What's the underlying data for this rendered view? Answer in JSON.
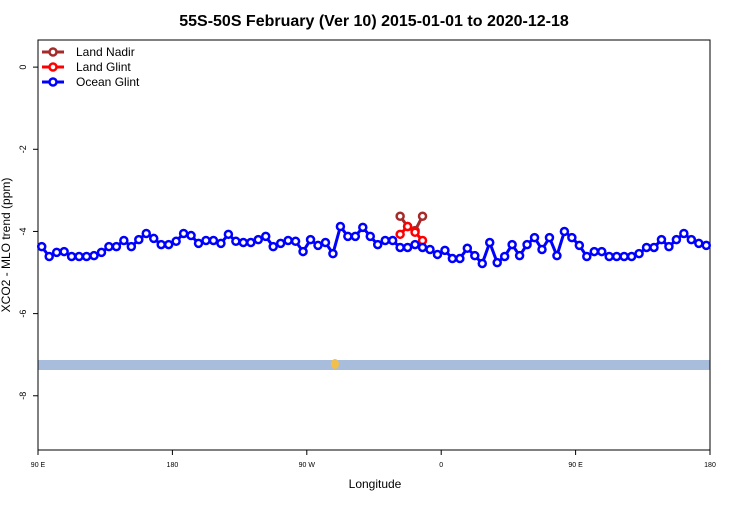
{
  "chart_data": {
    "type": "line",
    "title": "55S-50S February (Ver 10)   2015-01-01 to 2020-12-18",
    "x_label": "Longitude",
    "y_label": "XCO2 - MLO trend (ppm)",
    "xlim": [
      90,
      540
    ],
    "ylim": [
      -9.32,
      0.66
    ],
    "xticks": [
      {
        "value": 90,
        "label": "90 E"
      },
      180,
      {
        "value": 270,
        "label": "90 W"
      },
      {
        "value": 360,
        "label": "0"
      },
      {
        "value": 450,
        "label": "90 E"
      },
      {
        "value": 540,
        "label": "180"
      }
    ],
    "yticks": [
      0,
      -2,
      -4,
      -6,
      -8
    ],
    "legend": "top-left",
    "series": [
      {
        "name": "Land Nadir",
        "color": "#a52a2a",
        "x": [
          332.5,
          337.5,
          342.5,
          347.5
        ],
        "values": [
          -3.63,
          -3.88,
          -3.98,
          -3.63
        ]
      },
      {
        "name": "Land Glint",
        "color": "#ff0000",
        "x": [
          332.5,
          337.5,
          342.5,
          347.5
        ],
        "values": [
          -4.07,
          -3.88,
          -4.02,
          -4.22
        ]
      },
      {
        "name": "Ocean Glint",
        "color": "#0000ff",
        "x": [
          92.5,
          97.5,
          102.5,
          107.5,
          112.5,
          117.5,
          122.5,
          127.5,
          132.5,
          137.5,
          142.5,
          147.5,
          152.5,
          157.5,
          162.5,
          167.5,
          172.5,
          177.5,
          182.5,
          187.5,
          192.5,
          197.5,
          202.5,
          207.5,
          212.5,
          217.5,
          222.5,
          227.5,
          232.5,
          237.5,
          242.5,
          247.5,
          252.5,
          257.5,
          262.5,
          267.5,
          272.5,
          277.5,
          282.5,
          287.5,
          292.5,
          297.5,
          302.5,
          307.5,
          312.5,
          317.5,
          322.5,
          327.5,
          332.5,
          337.5,
          342.5,
          347.5,
          352.5,
          357.5,
          362.5,
          367.5,
          372.5,
          377.5,
          382.5,
          387.5,
          392.5,
          397.5,
          402.5,
          407.5,
          412.5,
          417.5,
          422.5,
          427.5,
          432.5,
          437.5,
          442.5,
          447.5,
          452.5,
          457.5,
          462.5,
          467.5,
          472.5,
          477.5,
          482.5,
          487.5,
          492.5,
          497.5,
          502.5,
          507.5,
          512.5,
          517.5,
          522.5,
          527.5,
          532.5,
          537.5
        ],
        "values": [
          -4.37,
          -4.61,
          -4.51,
          -4.49,
          -4.61,
          -4.61,
          -4.61,
          -4.59,
          -4.51,
          -4.37,
          -4.37,
          -4.22,
          -4.37,
          -4.2,
          -4.05,
          -4.17,
          -4.32,
          -4.32,
          -4.24,
          -4.05,
          -4.1,
          -4.29,
          -4.22,
          -4.22,
          -4.29,
          -4.07,
          -4.24,
          -4.27,
          -4.27,
          -4.2,
          -4.12,
          -4.37,
          -4.29,
          -4.22,
          -4.24,
          -4.49,
          -4.2,
          -4.34,
          -4.27,
          -4.54,
          -3.88,
          -4.12,
          -4.12,
          -3.9,
          -4.12,
          -4.32,
          -4.22,
          -4.22,
          -4.39,
          -4.39,
          -4.32,
          -4.39,
          -4.44,
          -4.56,
          -4.46,
          -4.66,
          -4.66,
          -4.41,
          -4.59,
          -4.78,
          -4.27,
          -4.76,
          -4.61,
          -4.32,
          -4.59,
          -4.32,
          -4.15,
          -4.44,
          -4.15,
          -4.59,
          -4.0,
          -4.15,
          -4.34,
          -4.61,
          -4.49,
          -4.49,
          -4.61,
          -4.61,
          -4.61,
          -4.61,
          -4.54,
          -4.39,
          -4.39,
          -4.2,
          -4.37,
          -4.2,
          -4.05,
          -4.2,
          -4.29,
          -4.34
        ]
      }
    ]
  }
}
